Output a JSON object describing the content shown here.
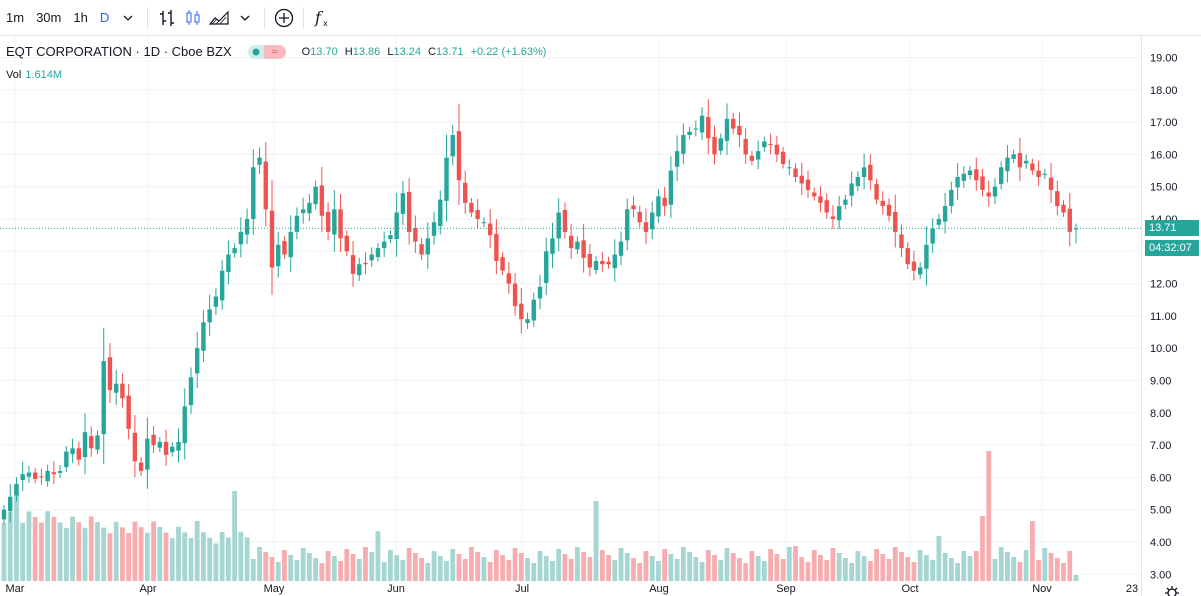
{
  "toolbar": {
    "intervals": [
      "1m",
      "30m",
      "1h",
      "D"
    ],
    "active_interval": "D",
    "icons": [
      "chevron-down-icon",
      "bar-style-icon",
      "candle-style-icon",
      "area-style-icon",
      "chevron-down-icon",
      "add-compare-icon",
      "indicators-fx-icon"
    ]
  },
  "legend": {
    "title": "EQT CORPORATION · 1D · Cboe BZX",
    "o_label": "O",
    "o": "13.70",
    "h_label": "H",
    "h": "13.86",
    "l_label": "L",
    "l": "13.24",
    "c_label": "C",
    "c": "13.71",
    "change": "+0.22 (+1.63%)",
    "vol_label": "Vol",
    "vol": "1.614M"
  },
  "price_tag": "13.71",
  "time_tag": "04:32:07",
  "colors": {
    "up": "#26a69a",
    "down": "#ef5350",
    "vol_up": "#a5d6d2",
    "vol_down": "#f7adb0",
    "grid": "#f0f3fa",
    "axis_text": "#131722"
  },
  "chart_data": {
    "type": "candlestick",
    "y_ticks": [
      "19.00",
      "18.00",
      "17.00",
      "16.00",
      "15.00",
      "14.00",
      "13.00",
      "12.00",
      "11.00",
      "10.00",
      "9.00",
      "8.00",
      "7.00",
      "6.00",
      "5.00",
      "4.00",
      "3.00"
    ],
    "ylim": [
      3.0,
      19.0
    ],
    "x_ticks": [
      "Mar",
      "Apr",
      "May",
      "Jun",
      "Jul",
      "Aug",
      "Sep",
      "Oct",
      "Nov",
      "23"
    ],
    "last_price": 13.71,
    "closes": [
      5.0,
      5.4,
      5.8,
      6.1,
      6.15,
      5.95,
      6.0,
      6.2,
      6.1,
      6.2,
      6.8,
      6.9,
      6.55,
      7.4,
      6.9,
      7.3,
      9.6,
      8.7,
      8.9,
      8.45,
      7.5,
      6.5,
      6.2,
      7.2,
      7.0,
      7.1,
      6.7,
      6.95,
      7.1,
      8.2,
      9.1,
      10.0,
      10.8,
      11.2,
      11.6,
      12.4,
      12.9,
      13.1,
      13.6,
      14.0,
      15.6,
      15.9,
      14.3,
      12.5,
      13.2,
      12.9,
      13.6,
      14.1,
      14.3,
      14.5,
      15.0,
      14.1,
      13.6,
      14.3,
      13.4,
      13.0,
      12.3,
      12.6,
      12.6,
      12.9,
      13.1,
      13.3,
      13.5,
      14.2,
      14.8,
      13.6,
      13.3,
      12.9,
      13.4,
      13.9,
      14.6,
      15.9,
      16.6,
      15.2,
      14.5,
      14.2,
      14.0,
      13.9,
      13.5,
      12.7,
      12.4,
      12.0,
      11.3,
      10.9,
      10.9,
      11.5,
      11.9,
      13.0,
      13.4,
      14.2,
      13.6,
      13.1,
      13.3,
      12.8,
      12.5,
      12.7,
      12.6,
      12.6,
      12.9,
      13.3,
      14.3,
      14.3,
      13.9,
      13.6,
      14.2,
      14.7,
      14.4,
      15.5,
      16.1,
      16.6,
      16.7,
      16.8,
      17.2,
      16.5,
      16.0,
      16.5,
      17.1,
      16.8,
      16.6,
      16.0,
      15.8,
      16.1,
      16.4,
      16.3,
      16.0,
      15.7,
      15.6,
      15.3,
      15.1,
      14.9,
      14.7,
      14.5,
      14.2,
      14.0,
      14.4,
      14.6,
      15.1,
      15.3,
      15.6,
      15.2,
      14.6,
      14.4,
      14.1,
      13.6,
      13.1,
      12.6,
      12.4,
      12.5,
      13.2,
      13.7,
      14.0,
      14.4,
      14.9,
      15.3,
      15.4,
      15.5,
      15.2,
      14.9,
      14.7,
      15.0,
      15.6,
      15.9,
      16.0,
      15.6,
      15.8,
      15.5,
      15.3,
      15.4,
      14.9,
      14.4,
      14.2,
      13.6,
      13.71
    ]
  }
}
